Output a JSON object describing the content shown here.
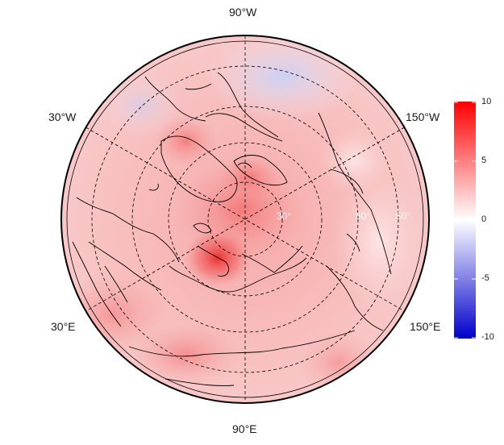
{
  "map": {
    "projection": "north-polar-stereographic",
    "longitude_labels": [
      {
        "id": "lon-90w",
        "text": "90°W"
      },
      {
        "id": "lon-30w",
        "text": "30°W"
      },
      {
        "id": "lon-150w",
        "text": "150°W"
      },
      {
        "id": "lon-30e",
        "text": "30°E"
      },
      {
        "id": "lon-150e",
        "text": "150°E"
      },
      {
        "id": "lon-90e",
        "text": "90°E"
      }
    ],
    "latitude_labels": [
      "30°",
      "60°",
      "50°"
    ],
    "colors": {
      "background_tint": "#f6c9c9",
      "hot": "#e8131b",
      "cold": "#b8c4f6",
      "border": "#000000",
      "grid": "#000000"
    }
  },
  "colorbar": {
    "ticks": [
      "10",
      "5",
      "0",
      "-5",
      "-10"
    ],
    "min": -10,
    "max": 10,
    "color_max": "#ff0000",
    "color_mid": "#ffffff",
    "color_min": "#0000cc"
  }
}
